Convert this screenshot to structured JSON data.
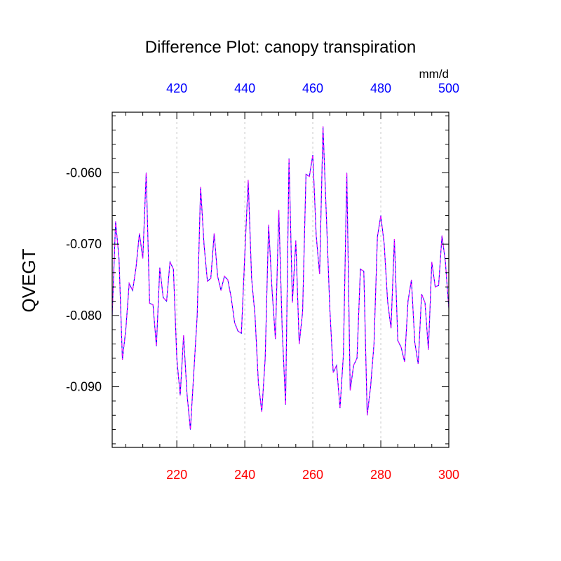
{
  "chart_data": {
    "type": "line",
    "title": "Difference Plot: canopy transpiration",
    "ylabel": "QVEGT",
    "units": "mm/d",
    "xlim": [
      201,
      300
    ],
    "ylim": [
      -0.0985,
      -0.0515
    ],
    "bottom_axis": {
      "ticks": [
        220,
        240,
        260,
        280,
        300
      ],
      "color": "#ff0000"
    },
    "top_axis": {
      "ticks": [
        420,
        440,
        460,
        480,
        500
      ],
      "offset": 200,
      "color": "#0000ff"
    },
    "y_ticks": [
      -0.06,
      -0.07,
      -0.08,
      -0.09
    ],
    "y_tick_labels": [
      "-0.060",
      "-0.070",
      "-0.080",
      "-0.090"
    ],
    "grid": "vertical dashed",
    "series": [
      {
        "line_color": "#0000ff",
        "dash_color": "#ff00ff",
        "x": [
          201,
          202,
          203,
          204,
          205,
          206,
          207,
          208,
          209,
          210,
          211,
          212,
          213,
          214,
          215,
          216,
          217,
          218,
          219,
          220,
          221,
          222,
          223,
          224,
          225,
          226,
          227,
          228,
          229,
          230,
          231,
          232,
          233,
          234,
          235,
          236,
          237,
          238,
          239,
          240,
          241,
          242,
          243,
          244,
          245,
          246,
          247,
          248,
          249,
          250,
          251,
          252,
          253,
          254,
          255,
          256,
          257,
          258,
          259,
          260,
          261,
          262,
          263,
          264,
          265,
          266,
          267,
          268,
          269,
          270,
          271,
          272,
          273,
          274,
          275,
          276,
          277,
          278,
          279,
          280,
          281,
          282,
          283,
          284,
          285,
          286,
          287,
          288,
          289,
          290,
          291,
          292,
          293,
          294,
          295,
          296,
          297,
          298,
          299,
          300
        ],
        "values": [
          -0.08,
          -0.0668,
          -0.072,
          -0.0862,
          -0.082,
          -0.0755,
          -0.0765,
          -0.0733,
          -0.0685,
          -0.072,
          -0.06,
          -0.0783,
          -0.0785,
          -0.0843,
          -0.0733,
          -0.0775,
          -0.078,
          -0.0725,
          -0.0735,
          -0.086,
          -0.0912,
          -0.0828,
          -0.091,
          -0.096,
          -0.088,
          -0.08,
          -0.062,
          -0.07,
          -0.0752,
          -0.0748,
          -0.0685,
          -0.0745,
          -0.0765,
          -0.0745,
          -0.075,
          -0.0775,
          -0.081,
          -0.0822,
          -0.0825,
          -0.0715,
          -0.061,
          -0.0748,
          -0.08,
          -0.0895,
          -0.0935,
          -0.086,
          -0.0673,
          -0.0763,
          -0.0833,
          -0.0652,
          -0.082,
          -0.0925,
          -0.058,
          -0.0782,
          -0.0695,
          -0.084,
          -0.0795,
          -0.0602,
          -0.0605,
          -0.0575,
          -0.0688,
          -0.0742,
          -0.0535,
          -0.0662,
          -0.079,
          -0.088,
          -0.087,
          -0.093,
          -0.0855,
          -0.06,
          -0.0905,
          -0.087,
          -0.086,
          -0.0735,
          -0.0738,
          -0.094,
          -0.09,
          -0.084,
          -0.069,
          -0.066,
          -0.07,
          -0.078,
          -0.0818,
          -0.0693,
          -0.0835,
          -0.0845,
          -0.0865,
          -0.078,
          -0.075,
          -0.0838,
          -0.0868,
          -0.077,
          -0.0782,
          -0.0848,
          -0.0725,
          -0.076,
          -0.0758,
          -0.0688,
          -0.0725,
          -0.079
        ]
      }
    ]
  }
}
